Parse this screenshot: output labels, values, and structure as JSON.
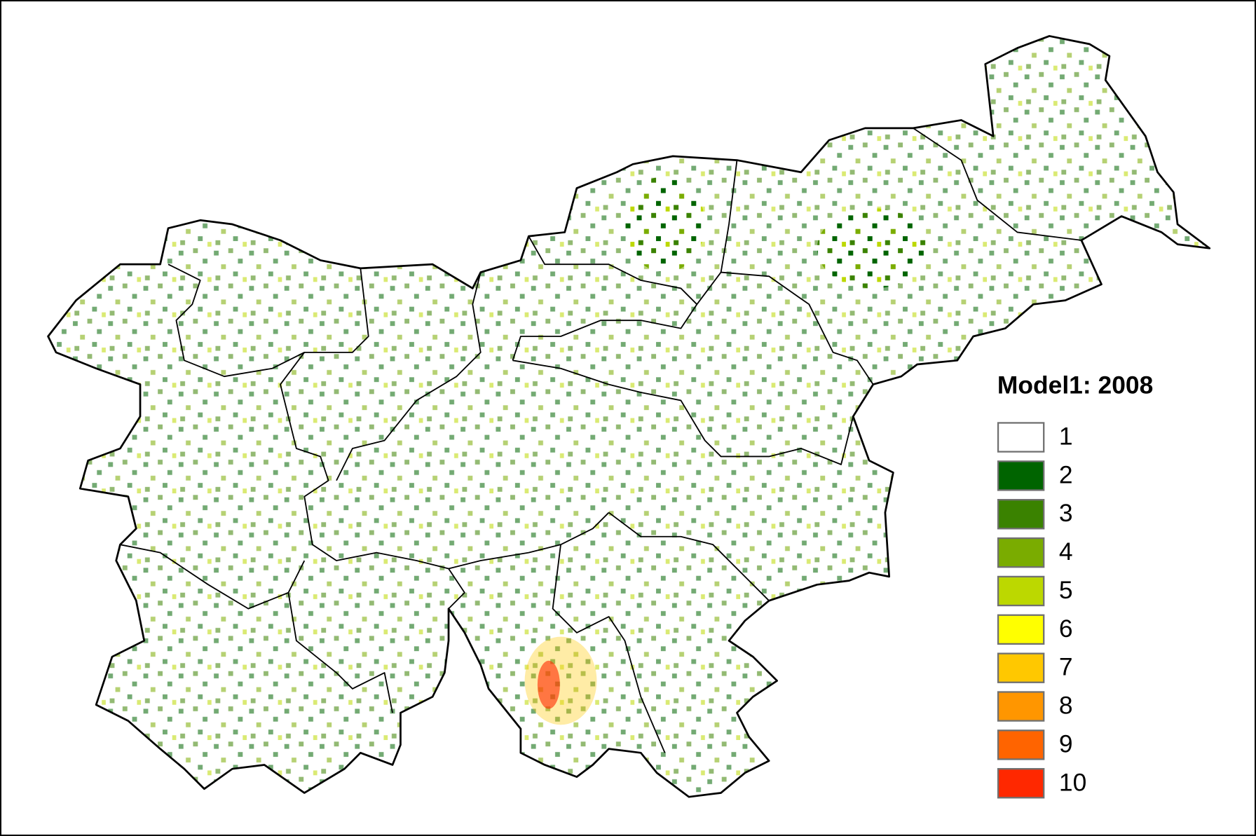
{
  "legend": {
    "title": "Model1: 2008",
    "items": [
      {
        "label": "1",
        "color": "#ffffff"
      },
      {
        "label": "2",
        "color": "#006400"
      },
      {
        "label": "3",
        "color": "#3a8200"
      },
      {
        "label": "4",
        "color": "#7aac00"
      },
      {
        "label": "5",
        "color": "#bcd800"
      },
      {
        "label": "6",
        "color": "#ffff00"
      },
      {
        "label": "7",
        "color": "#ffc800"
      },
      {
        "label": "8",
        "color": "#ff9600"
      },
      {
        "label": "9",
        "color": "#ff6400"
      },
      {
        "label": "10",
        "color": "#ff2800"
      }
    ]
  }
}
